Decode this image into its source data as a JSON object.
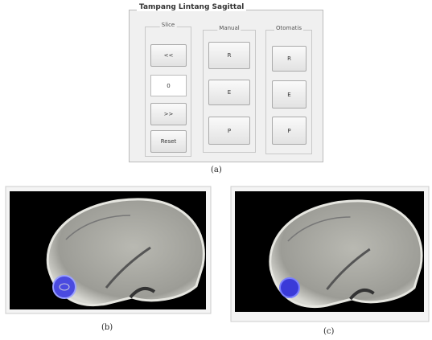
{
  "panel": {
    "title": "Tampang Lintang Sagittal",
    "groups": [
      {
        "label": "Slice",
        "buttons": [
          "<<",
          "0",
          ">>",
          "Reset"
        ]
      },
      {
        "label": "Manual",
        "buttons": [
          "R",
          "E",
          "P"
        ]
      },
      {
        "label": "Otomatis",
        "buttons": [
          "R",
          "E",
          "P"
        ]
      }
    ]
  },
  "captions": [
    "(a)",
    "(b)",
    "(c)"
  ]
}
